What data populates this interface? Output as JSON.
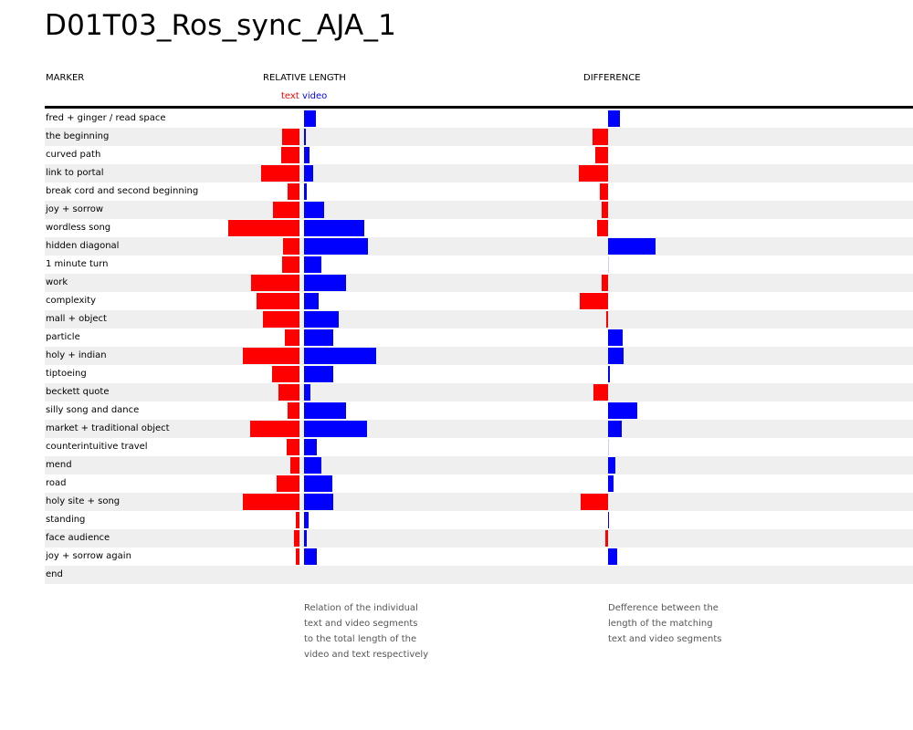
{
  "title": "D01T03_Ros_sync_AJA_1",
  "headers": {
    "marker": "MARKER",
    "relative_length": "RELATIVE LENGTH",
    "difference": "DIFFERENCE"
  },
  "legend": {
    "text": "text",
    "video": "video"
  },
  "notes": {
    "relative": [
      "Relation of the individual",
      "text and video segments",
      "to the total length of the",
      "video and text respectively"
    ],
    "difference": [
      "Defference between the",
      "length of the matching",
      "text and video segments"
    ]
  },
  "colors": {
    "text": "#ff0000",
    "video": "#0000ff",
    "row_alt": "#efefef"
  },
  "chart_data": {
    "type": "bar",
    "categories": [
      "fred + ginger / read space",
      "the beginning",
      "curved path",
      "link to portal",
      "break cord and second beginning",
      "joy + sorrow",
      "wordless song",
      "hidden diagonal",
      "1 minute turn",
      "work",
      "complexity",
      "mall + object",
      "particle",
      "holy + indian",
      "tiptoeing",
      "beckett quote",
      "silly song and dance",
      "market + traditional object",
      "counterintuitive travel",
      "mend",
      "road",
      "holy site + song",
      "standing",
      "face audience",
      "joy + sorrow again",
      "end"
    ],
    "series": [
      {
        "name": "text",
        "values": [
          0,
          19,
          20,
          42,
          13,
          29,
          78,
          18,
          19,
          53,
          47,
          40,
          16,
          62,
          30,
          23,
          13,
          54,
          14,
          10,
          25,
          62,
          4,
          6,
          4,
          0
        ]
      },
      {
        "name": "video",
        "values": [
          13,
          2,
          6,
          10,
          3,
          22,
          66,
          70,
          19,
          46,
          16,
          38,
          32,
          79,
          32,
          7,
          46,
          69,
          14,
          19,
          31,
          32,
          5,
          3,
          14,
          0
        ]
      }
    ],
    "difference": [
      13,
      -17,
      -14,
      -32,
      -9,
      -7,
      -12,
      52,
      0,
      -7,
      -31,
      -2,
      16,
      17,
      2,
      -16,
      32,
      15,
      0,
      8,
      6,
      -30,
      1,
      -3,
      10,
      0
    ]
  }
}
